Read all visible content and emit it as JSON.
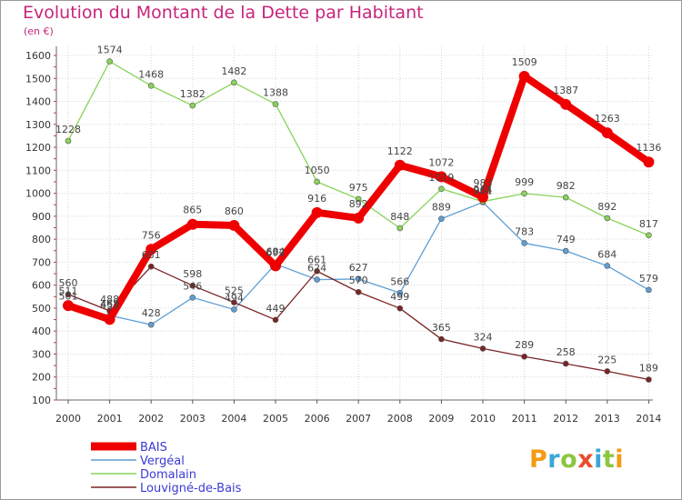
{
  "title": "Evolution du Montant de la Dette par Habitant",
  "unit": "(en €)",
  "logo": {
    "text": "Proxiti",
    "colors": [
      "#f39c12",
      "#3aa7d9",
      "#8cc63f",
      "#e84d2c",
      "#3aa7d9",
      "#8cc63f",
      "#f39c12"
    ]
  },
  "chart_data": {
    "type": "line",
    "title": "Evolution du Montant de la Dette par Habitant",
    "ylabel": "(en €)",
    "xlabel": "",
    "x": [
      "2000",
      "2001",
      "2002",
      "2003",
      "2004",
      "2005",
      "2006",
      "2007",
      "2008",
      "2009",
      "2010",
      "2011",
      "2012",
      "2013",
      "2014"
    ],
    "ylim": [
      100,
      1600
    ],
    "yticks": [
      100,
      200,
      300,
      400,
      500,
      600,
      700,
      800,
      900,
      1000,
      1100,
      1200,
      1300,
      1400,
      1500,
      1600
    ],
    "grid": true,
    "legend_position": "bottom-left",
    "series": [
      {
        "name": "BAIS",
        "color": "#ee0000",
        "emphasis": true,
        "values": [
          511,
          451,
          756,
          865,
          860,
          684,
          916,
          892,
          1122,
          1072,
          983,
          1509,
          1387,
          1263,
          1136
        ]
      },
      {
        "name": "Vergéal",
        "color": "#5e9fd4",
        "values": [
          501,
          468,
          428,
          546,
          494,
          692,
          624,
          627,
          566,
          889,
          961,
          783,
          749,
          684,
          579
        ]
      },
      {
        "name": "Domalain",
        "color": "#88d35a",
        "values": [
          1228,
          1574,
          1468,
          1382,
          1482,
          1388,
          1050,
          975,
          848,
          1019,
          964,
          999,
          982,
          892,
          817
        ]
      },
      {
        "name": "Louvigné-de-Bais",
        "color": "#7a2426",
        "values": [
          560,
          488,
          681,
          598,
          525,
          449,
          661,
          570,
          499,
          365,
          324,
          289,
          258,
          225,
          189
        ]
      }
    ]
  }
}
